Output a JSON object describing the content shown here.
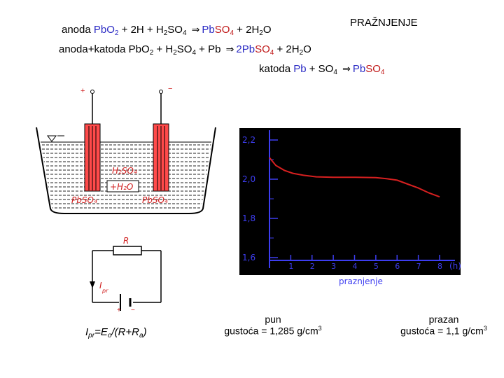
{
  "title": "PRAŽNJENJE",
  "equations": {
    "anode": {
      "prefix": "anoda",
      "p1": "Pb",
      "p1b": "O",
      "s1": "2",
      "p2": " + 2H + H",
      "s2": "2",
      "p3": "SO",
      "s3": "4",
      "p4": "Pb",
      "p4b": "SO",
      "s4": "4",
      "p5": " + 2H",
      "s5": "2",
      "p6": "O"
    },
    "total": {
      "prefix": "anoda+katoda Pb",
      "p1": "O",
      "s1": "2",
      "p2": " + H",
      "s2": "2",
      "p3": "SO",
      "s3": "4",
      "p4": " + Pb ",
      "p5": "2Pb",
      "p5b": "SO",
      "s5": "4",
      "p6": " + 2H",
      "s6": "2",
      "p7": "O"
    },
    "cathode": {
      "prefix": "katoda ",
      "p1": "Pb",
      "p2": " + SO",
      "s2": "4",
      "p3": "Pb",
      "p3b": "SO",
      "s3": "4"
    }
  },
  "diagram": {
    "plus": "+",
    "minus": "−",
    "electrolyte": "H₂SO₄",
    "water": "+H₂O",
    "left_product": "PbSO₄",
    "right_product": "PbSO₄",
    "resistor": "R",
    "current": "I",
    "current_sub": "pr",
    "battery_plus": "+",
    "battery_minus": "−"
  },
  "chart_data": {
    "type": "line",
    "title": "",
    "xlabel": "praznjenje",
    "ylabel": "",
    "x_unit": "(h)",
    "xlim": [
      0,
      8.5
    ],
    "ylim": [
      1.55,
      2.3
    ],
    "x_ticks": [
      1,
      2,
      3,
      4,
      5,
      6,
      7,
      8
    ],
    "x_tick_labels": [
      "1",
      "2",
      "3",
      "4",
      "5",
      "6",
      "7",
      "8"
    ],
    "y_ticks": [
      1.6,
      1.8,
      2.0,
      2.2
    ],
    "y_tick_labels": [
      "1,6",
      "1,8",
      "2,0",
      "2,2"
    ],
    "series": [
      {
        "x": [
          0,
          0.3,
          0.7,
          1.1,
          1.6,
          2.2,
          3,
          4,
          5,
          5.5,
          6,
          6.5,
          7,
          7.5,
          8
        ],
        "y": [
          2.11,
          2.07,
          2.045,
          2.03,
          2.02,
          2.012,
          2.01,
          2.01,
          2.008,
          2.003,
          1.995,
          1.975,
          1.955,
          1.93,
          1.91
        ]
      }
    ]
  },
  "formula": {
    "I": "I",
    "sub1": "pr",
    "eq": "=E",
    "sub2": "o",
    "rest": "/(R+R",
    "sub3": "a",
    "close": ")"
  },
  "captions": {
    "full_title": "pun",
    "full_density": "gustoća = 1,285 g/cm",
    "empty_title": "prazan",
    "empty_density": "gustoća = 1,1 g/cm",
    "unit_sup": "3"
  },
  "colors": {
    "cell_fill": "#ff4a4a",
    "graph_bg": "#000000",
    "axis": "#3d3df0",
    "curve": "#d62020",
    "blue_text": "#2b2bc4"
  }
}
